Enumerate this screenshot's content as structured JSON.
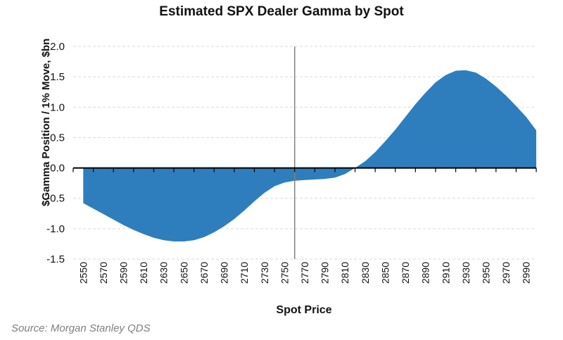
{
  "chart_data": {
    "type": "area",
    "title": "Estimated SPX Dealer Gamma by Spot",
    "xlabel": "Spot Price",
    "ylabel": "$Gamma Position / 1% Move, $bn",
    "source": "Source: Morgan Stanley QDS",
    "ylim": [
      -1.5,
      2.0
    ],
    "yticks": [
      "2.0",
      "1.5",
      "1.0",
      "0.5",
      "0.0",
      "-0.5",
      "-1.0",
      "-1.5"
    ],
    "categories": [
      "2550",
      "2570",
      "2590",
      "2610",
      "2630",
      "2650",
      "2670",
      "2690",
      "2710",
      "2730",
      "2750",
      "2770",
      "2790",
      "2810",
      "2830",
      "2850",
      "2870",
      "2890",
      "2910",
      "2930",
      "2950",
      "2970",
      "2990"
    ],
    "current_spot_marker": 2760,
    "series": [
      {
        "color": "#2e7ebd",
        "x": [
          2550,
          2560,
          2570,
          2580,
          2590,
          2600,
          2610,
          2620,
          2630,
          2640,
          2650,
          2660,
          2670,
          2680,
          2690,
          2700,
          2710,
          2720,
          2730,
          2740,
          2750,
          2760,
          2770,
          2780,
          2790,
          2800,
          2810,
          2820,
          2830,
          2840,
          2850,
          2860,
          2870,
          2880,
          2890,
          2900,
          2910,
          2920,
          2930,
          2940,
          2950,
          2960,
          2970,
          2980,
          2990,
          3000
        ],
        "values": [
          -0.58,
          -0.67,
          -0.76,
          -0.85,
          -0.94,
          -1.02,
          -1.09,
          -1.15,
          -1.19,
          -1.21,
          -1.21,
          -1.19,
          -1.14,
          -1.06,
          -0.96,
          -0.84,
          -0.7,
          -0.55,
          -0.41,
          -0.3,
          -0.24,
          -0.21,
          -0.2,
          -0.19,
          -0.18,
          -0.16,
          -0.1,
          0.0,
          0.11,
          0.26,
          0.44,
          0.63,
          0.84,
          1.05,
          1.24,
          1.41,
          1.53,
          1.6,
          1.61,
          1.57,
          1.47,
          1.34,
          1.19,
          1.02,
          0.84,
          0.62
        ]
      }
    ],
    "grid": true
  }
}
